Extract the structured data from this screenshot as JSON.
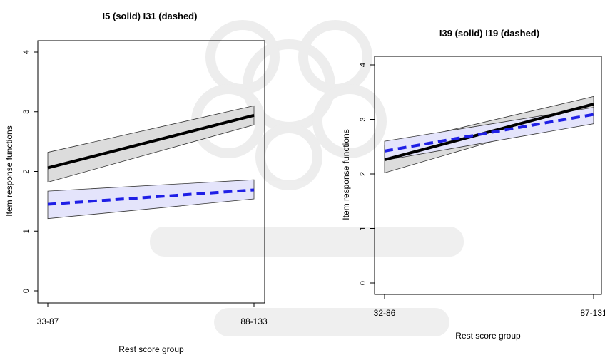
{
  "chart_data": [
    {
      "type": "line",
      "title": "I5 (solid) I31 (dashed)",
      "xlabel": "Rest score group",
      "ylabel": "Item response functions",
      "categories": [
        "33-87",
        "88-133"
      ],
      "yticks": [
        "0",
        "1",
        "2",
        "3",
        "4"
      ],
      "ylim": [
        0,
        4
      ],
      "grid": false,
      "series": [
        {
          "style": "solid",
          "color": "#000000",
          "band_color": "#dcdcdc",
          "values": [
            2.06,
            2.94
          ],
          "lower": [
            1.82,
            2.78
          ],
          "upper": [
            2.32,
            3.1
          ]
        },
        {
          "style": "dashed",
          "color": "#1f1fe6",
          "band_color": "#e4e4fb",
          "values": [
            1.45,
            1.69
          ],
          "lower": [
            1.21,
            1.54
          ],
          "upper": [
            1.67,
            1.86
          ]
        }
      ]
    },
    {
      "type": "line",
      "title": "I39 (solid) I19 (dashed)",
      "xlabel": "Rest score group",
      "ylabel": "Item response functions",
      "categories": [
        "32-86",
        "87-131"
      ],
      "yticks": [
        "0",
        "1",
        "2",
        "3",
        "4"
      ],
      "ylim": [
        0,
        4
      ],
      "grid": false,
      "series": [
        {
          "style": "solid",
          "color": "#000000",
          "band_color": "#dcdcdc",
          "values": [
            2.26,
            3.28
          ],
          "lower": [
            2.02,
            3.14
          ],
          "upper": [
            2.52,
            3.42
          ]
        },
        {
          "style": "dashed",
          "color": "#1f1fe6",
          "band_color": "#e4e4fb",
          "values": [
            2.42,
            3.09
          ],
          "lower": [
            2.25,
            2.92
          ],
          "upper": [
            2.6,
            3.22
          ]
        }
      ]
    }
  ]
}
